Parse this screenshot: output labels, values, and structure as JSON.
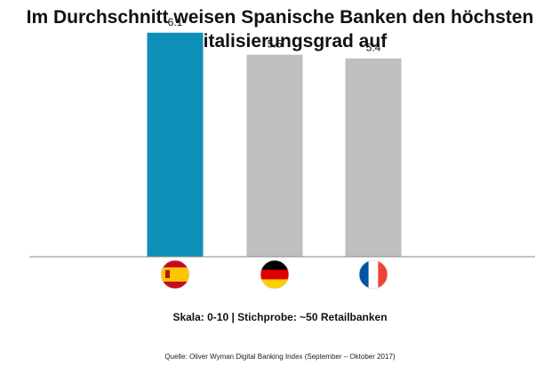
{
  "chart_data": {
    "type": "bar",
    "title": [
      "Im Durchschnitt weisen Spanische Banken den höchsten",
      "Digitalisierungsgrad auf"
    ],
    "categories": [
      "Spanien",
      "Deutschland",
      "Frankreich"
    ],
    "category_icons": [
      "flag-spain-icon",
      "flag-germany-icon",
      "flag-france-icon"
    ],
    "values": [
      6.1,
      5.5,
      5.4
    ],
    "data_labels": [
      "6.1",
      "5.5",
      "5.4"
    ],
    "bar_colors": [
      "#0E8FB7",
      "#BFBFBF",
      "#BFBFBF"
    ],
    "ylim": [
      0,
      6.7
    ],
    "grid": false,
    "legend": "none"
  },
  "note": "Skala: 0-10 | Stichprobe: ~50 Retailbanken",
  "source": "Quelle: Oliver Wyman Digital Banking Index (September – Oktober 2017)"
}
